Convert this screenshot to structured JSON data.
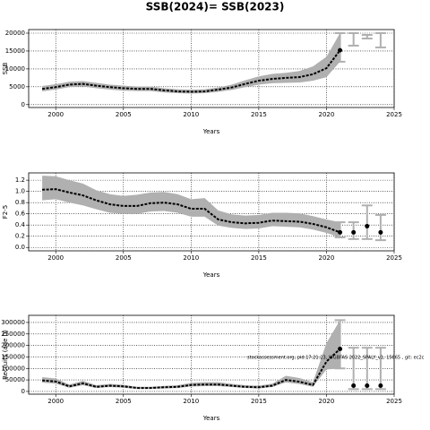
{
  "title": "SSB(2024)= SSB(2023)",
  "note": "stockassessment.org, pid:17:21:23, WGBFAS 2022_SPALY_v1, 15865 , git: ec2c",
  "chart_data": [
    {
      "type": "line",
      "ylabel": "SSB",
      "xlabel": "Years",
      "x": [
        1999,
        2000,
        2001,
        2002,
        2003,
        2004,
        2005,
        2006,
        2007,
        2008,
        2009,
        2010,
        2011,
        2012,
        2013,
        2014,
        2015,
        2016,
        2017,
        2018,
        2019,
        2020,
        2021
      ],
      "values": [
        4400,
        4900,
        5600,
        5800,
        5300,
        4900,
        4600,
        4400,
        4400,
        4000,
        3700,
        3600,
        3700,
        4200,
        4800,
        5800,
        6700,
        7200,
        7500,
        7700,
        8500,
        10200,
        15200
      ],
      "lower": [
        3700,
        4200,
        4900,
        5100,
        4600,
        4200,
        3900,
        3800,
        3800,
        3400,
        3200,
        3100,
        3200,
        3600,
        4100,
        4900,
        5600,
        6000,
        6100,
        6200,
        6700,
        7700,
        12000
      ],
      "upper": [
        5200,
        5700,
        6400,
        6600,
        6100,
        5600,
        5300,
        5100,
        5100,
        4600,
        4300,
        4200,
        4300,
        4800,
        5600,
        6800,
        7900,
        8600,
        8900,
        9400,
        10700,
        13400,
        20000
      ],
      "proj_x": [
        2022,
        2023,
        2024
      ],
      "proj_lower": [
        16500,
        18500,
        16000
      ],
      "proj_upper": [
        20000,
        19500,
        20000
      ],
      "color": "#000000",
      "band_color": "#b0b0b0",
      "bar_color": "#b0b0b0",
      "xlim": [
        1998,
        2025
      ],
      "xticks": [
        2000,
        2005,
        2010,
        2015,
        2020,
        2025
      ],
      "ylim": [
        -800,
        21000
      ],
      "yticks": [
        0,
        5000,
        10000,
        15000,
        20000
      ],
      "grid": true
    },
    {
      "type": "line",
      "ylabel": "F2-5",
      "xlabel": "Years",
      "x": [
        1999,
        2000,
        2001,
        2002,
        2003,
        2004,
        2005,
        2006,
        2007,
        2008,
        2009,
        2010,
        2011,
        2012,
        2013,
        2014,
        2015,
        2016,
        2017,
        2018,
        2019,
        2020,
        2021
      ],
      "values": [
        1.03,
        1.04,
        0.98,
        0.93,
        0.84,
        0.77,
        0.74,
        0.74,
        0.79,
        0.8,
        0.77,
        0.69,
        0.69,
        0.5,
        0.45,
        0.43,
        0.44,
        0.48,
        0.47,
        0.46,
        0.42,
        0.36,
        0.27
      ],
      "lower": [
        0.84,
        0.86,
        0.8,
        0.75,
        0.68,
        0.62,
        0.6,
        0.6,
        0.64,
        0.65,
        0.62,
        0.55,
        0.55,
        0.39,
        0.35,
        0.33,
        0.34,
        0.38,
        0.37,
        0.36,
        0.32,
        0.26,
        0.18
      ],
      "upper": [
        1.28,
        1.27,
        1.2,
        1.14,
        1.02,
        0.95,
        0.92,
        0.94,
        0.98,
        0.99,
        0.95,
        0.86,
        0.88,
        0.66,
        0.59,
        0.57,
        0.58,
        0.62,
        0.62,
        0.61,
        0.56,
        0.5,
        0.45
      ],
      "proj_x": [
        2022,
        2023,
        2024
      ],
      "proj_values": [
        0.27,
        0.38,
        0.27
      ],
      "proj_lower": [
        0.15,
        0.15,
        0.13
      ],
      "proj_upper": [
        0.45,
        0.75,
        0.58
      ],
      "color": "#000000",
      "band_color": "#b0b0b0",
      "bar_color": "#b0b0b0",
      "xlim": [
        1998,
        2025
      ],
      "xticks": [
        2000,
        2005,
        2010,
        2015,
        2020,
        2025
      ],
      "ylim": [
        -0.06,
        1.33
      ],
      "yticks": [
        {
          "value": 0,
          "label": "0.0"
        },
        0.2,
        0.4,
        0.6,
        0.8,
        {
          "value": 1,
          "label": "1.0"
        },
        1.2
      ],
      "grid": true
    },
    {
      "type": "line",
      "ylabel": "Recruits (age 0)",
      "xlabel": "Years",
      "x": [
        1999,
        2000,
        2001,
        2002,
        2003,
        2004,
        2005,
        2006,
        2007,
        2008,
        2009,
        2010,
        2011,
        2012,
        2013,
        2014,
        2015,
        2016,
        2017,
        2018,
        2019,
        2020,
        2021
      ],
      "values": [
        48000,
        43000,
        22000,
        35000,
        20000,
        25000,
        22000,
        15000,
        15000,
        18000,
        20000,
        28000,
        30000,
        30000,
        25000,
        20000,
        18000,
        25000,
        50000,
        42000,
        28000,
        130000,
        185000
      ],
      "lower": [
        38000,
        34000,
        16000,
        27000,
        15000,
        19000,
        16000,
        11000,
        11000,
        13000,
        15000,
        21000,
        23000,
        23000,
        19000,
        15000,
        13000,
        19000,
        39000,
        32000,
        20000,
        95000,
        100000
      ],
      "upper": [
        62000,
        56000,
        30000,
        46000,
        27000,
        33000,
        29000,
        20000,
        20000,
        24000,
        27000,
        37000,
        40000,
        40000,
        33000,
        27000,
        25000,
        34000,
        68000,
        58000,
        40000,
        210000,
        310000
      ],
      "proj_x": [
        2022,
        2023,
        2024
      ],
      "proj_values": [
        25000,
        25000,
        25000
      ],
      "proj_lower": [
        10000,
        10000,
        10000
      ],
      "proj_upper": [
        190000,
        190000,
        190000
      ],
      "color": "#000000",
      "band_color": "#b0b0b0",
      "bar_color": "#b0b0b0",
      "xlim": [
        1998,
        2025
      ],
      "xticks": [
        2000,
        2005,
        2010,
        2015,
        2020,
        2025
      ],
      "ylim": [
        -12000,
        331000
      ],
      "yticks": [
        0,
        50000,
        100000,
        150000,
        200000,
        250000,
        300000
      ],
      "grid": true
    }
  ]
}
